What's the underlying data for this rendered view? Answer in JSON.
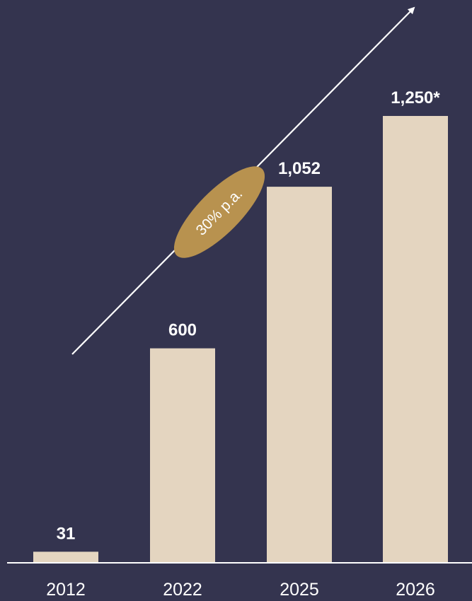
{
  "colors": {
    "background": "#34344f",
    "bar": "#e4d5c0",
    "text": "#ffffff",
    "axis": "#ffffff",
    "badge": "#b8924f"
  },
  "chart_data": {
    "type": "bar",
    "categories": [
      "2012",
      "2022",
      "2025",
      "2026"
    ],
    "values": [
      31,
      600,
      1052,
      1250
    ],
    "value_labels": [
      "31",
      "600",
      "1,052",
      "1,250*"
    ],
    "title": "",
    "xlabel": "",
    "ylabel": "",
    "ylim": [
      0,
      1250
    ],
    "grid": false,
    "annotation": {
      "text": "30% p.a.",
      "shape": "ellipse on upward growth arrow"
    }
  }
}
